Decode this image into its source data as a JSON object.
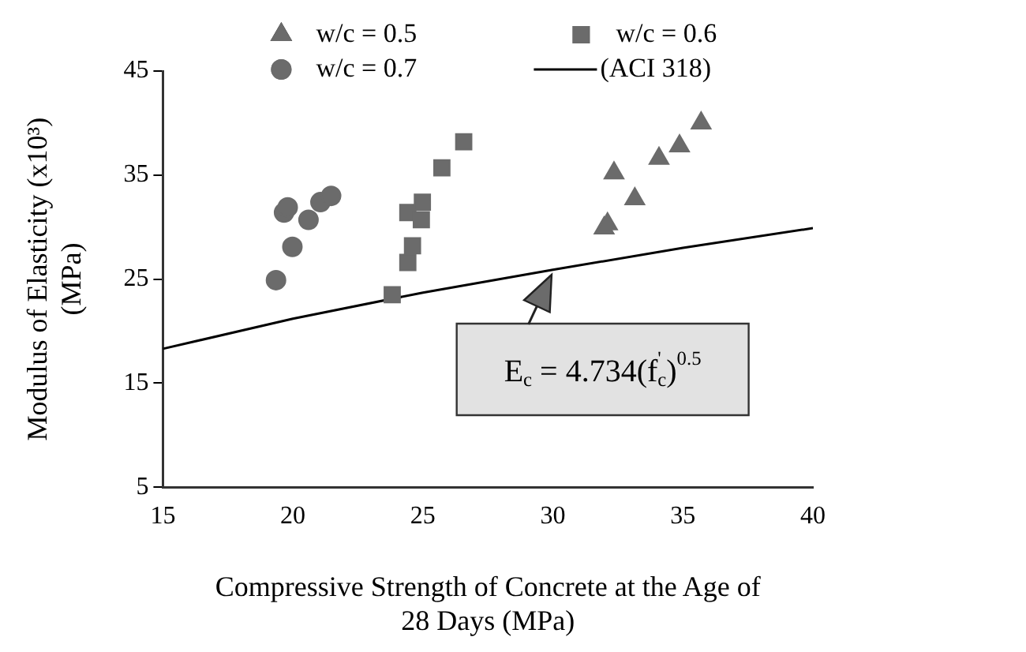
{
  "chart_data": {
    "type": "scatter",
    "xlabel": "Compressive Strength of Concrete at the Age of\n28 Days (MPa)",
    "ylabel": "Modulus of Elasticity (x10³)\n(MPa)",
    "xlim": [
      15,
      40
    ],
    "xticks": [
      15,
      20,
      25,
      30,
      35,
      40
    ],
    "ylim": [
      5,
      45
    ],
    "yticks": [
      5,
      15,
      25,
      35,
      45
    ],
    "grid": false,
    "legend": "top",
    "series": [
      {
        "name": "w/c = 0.5",
        "color": "#6b6b6b",
        "marker": "triangle",
        "x": [
          31.97,
          32.1,
          32.35,
          33.15,
          34.08,
          34.87,
          35.7
        ],
        "values": [
          29.9,
          30.3,
          35.2,
          32.7,
          36.6,
          37.8,
          40.0
        ]
      },
      {
        "name": "w/c = 0.6",
        "color": "#6b6b6b",
        "marker": "square",
        "x": [
          23.82,
          24.42,
          24.6,
          24.42,
          24.98,
          24.94,
          25.73,
          26.57
        ],
        "values": [
          23.5,
          26.6,
          28.2,
          31.4,
          32.4,
          30.7,
          35.7,
          38.2
        ]
      },
      {
        "name": "w/c = 0.7",
        "color": "#6b6b6b",
        "marker": "circle",
        "x": [
          19.35,
          19.98,
          19.66,
          19.8,
          20.6,
          21.06,
          21.47
        ],
        "values": [
          24.9,
          28.1,
          31.4,
          31.9,
          30.7,
          32.4,
          33.0
        ]
      },
      {
        "name": "(ACI 318)",
        "type": "line",
        "color": "#000000",
        "marker": "none",
        "line_style": "solid",
        "x": [
          15,
          20,
          25,
          30,
          35,
          40
        ],
        "values": [
          18.3,
          21.2,
          23.7,
          25.9,
          28.0,
          29.9
        ]
      }
    ],
    "annotations": [
      {
        "text": "E$_{c}$ = 4.734(f$_{c}$$^{'}$)$^{0.5}$",
        "x": 30,
        "y": 25.9
      }
    ]
  }
}
